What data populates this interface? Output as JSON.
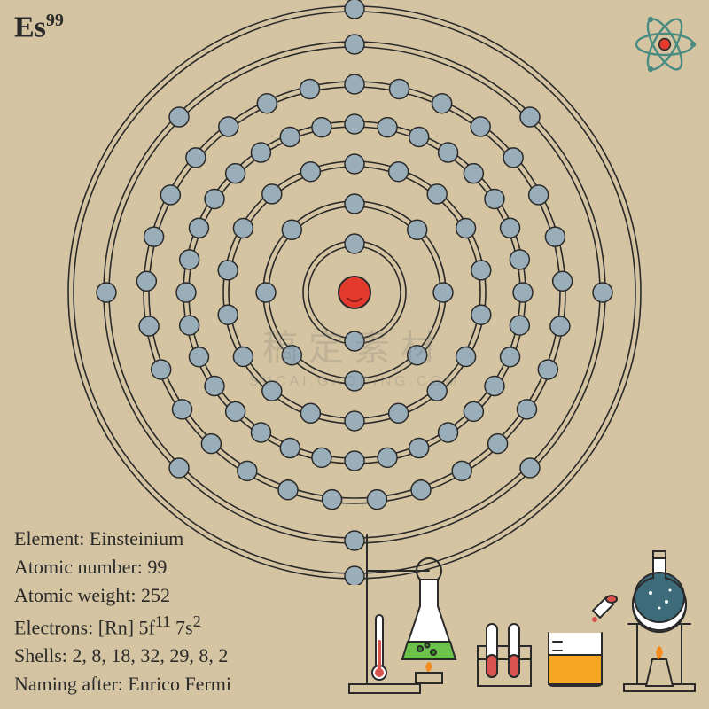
{
  "element": {
    "symbol": "Es",
    "atomicNumber": "99",
    "name": "Einsteinium",
    "atomicWeight": "252",
    "electrons_prefix": "[Rn] 5f",
    "electrons_sup1": "11",
    "electrons_mid": " 7s",
    "electrons_sup2": "2",
    "shellsText": "2, 8, 18, 32, 29, 8, 2",
    "namedAfter": "Enrico Fermi"
  },
  "labels": {
    "element": "Element:",
    "atomicNumber": "Atomic number:",
    "atomicWeight": "Atomic weight:",
    "electrons": "Electrons:",
    "shells": "Shells:",
    "namingAfter": "Naming after:"
  },
  "diagram": {
    "centerRadius": 18,
    "nucleusFill": "#e23b2e",
    "nucleusStroke": "#2a2a2a",
    "electronRadius": 11,
    "electronFill": "#99aeb8",
    "electronStroke": "#2a2a2a",
    "ringStroke": "#2a2a2a",
    "ringStrokeWidth": 1.6,
    "ringGap": 6,
    "shells": [
      {
        "r": 55,
        "count": 2
      },
      {
        "r": 100,
        "count": 8
      },
      {
        "r": 145,
        "count": 18
      },
      {
        "r": 190,
        "count": 32
      },
      {
        "r": 235,
        "count": 29
      },
      {
        "r": 280,
        "count": 8
      },
      {
        "r": 320,
        "count": 2
      }
    ]
  },
  "colors": {
    "background": "#d5c4a1",
    "text": "#2a2a2a",
    "orbitTeal": "#4a8b82",
    "flaskGreen": "#6cc24a",
    "beakerOrange": "#f5a623",
    "testTubeRed": "#d9534f",
    "roundFlaskBlue": "#3e6b7a",
    "flame": "#f48c1f",
    "glassStroke": "#2a2a2a"
  },
  "watermark": {
    "line1": "稿定素材",
    "line2": "SUCAI.GAODING.COM"
  }
}
